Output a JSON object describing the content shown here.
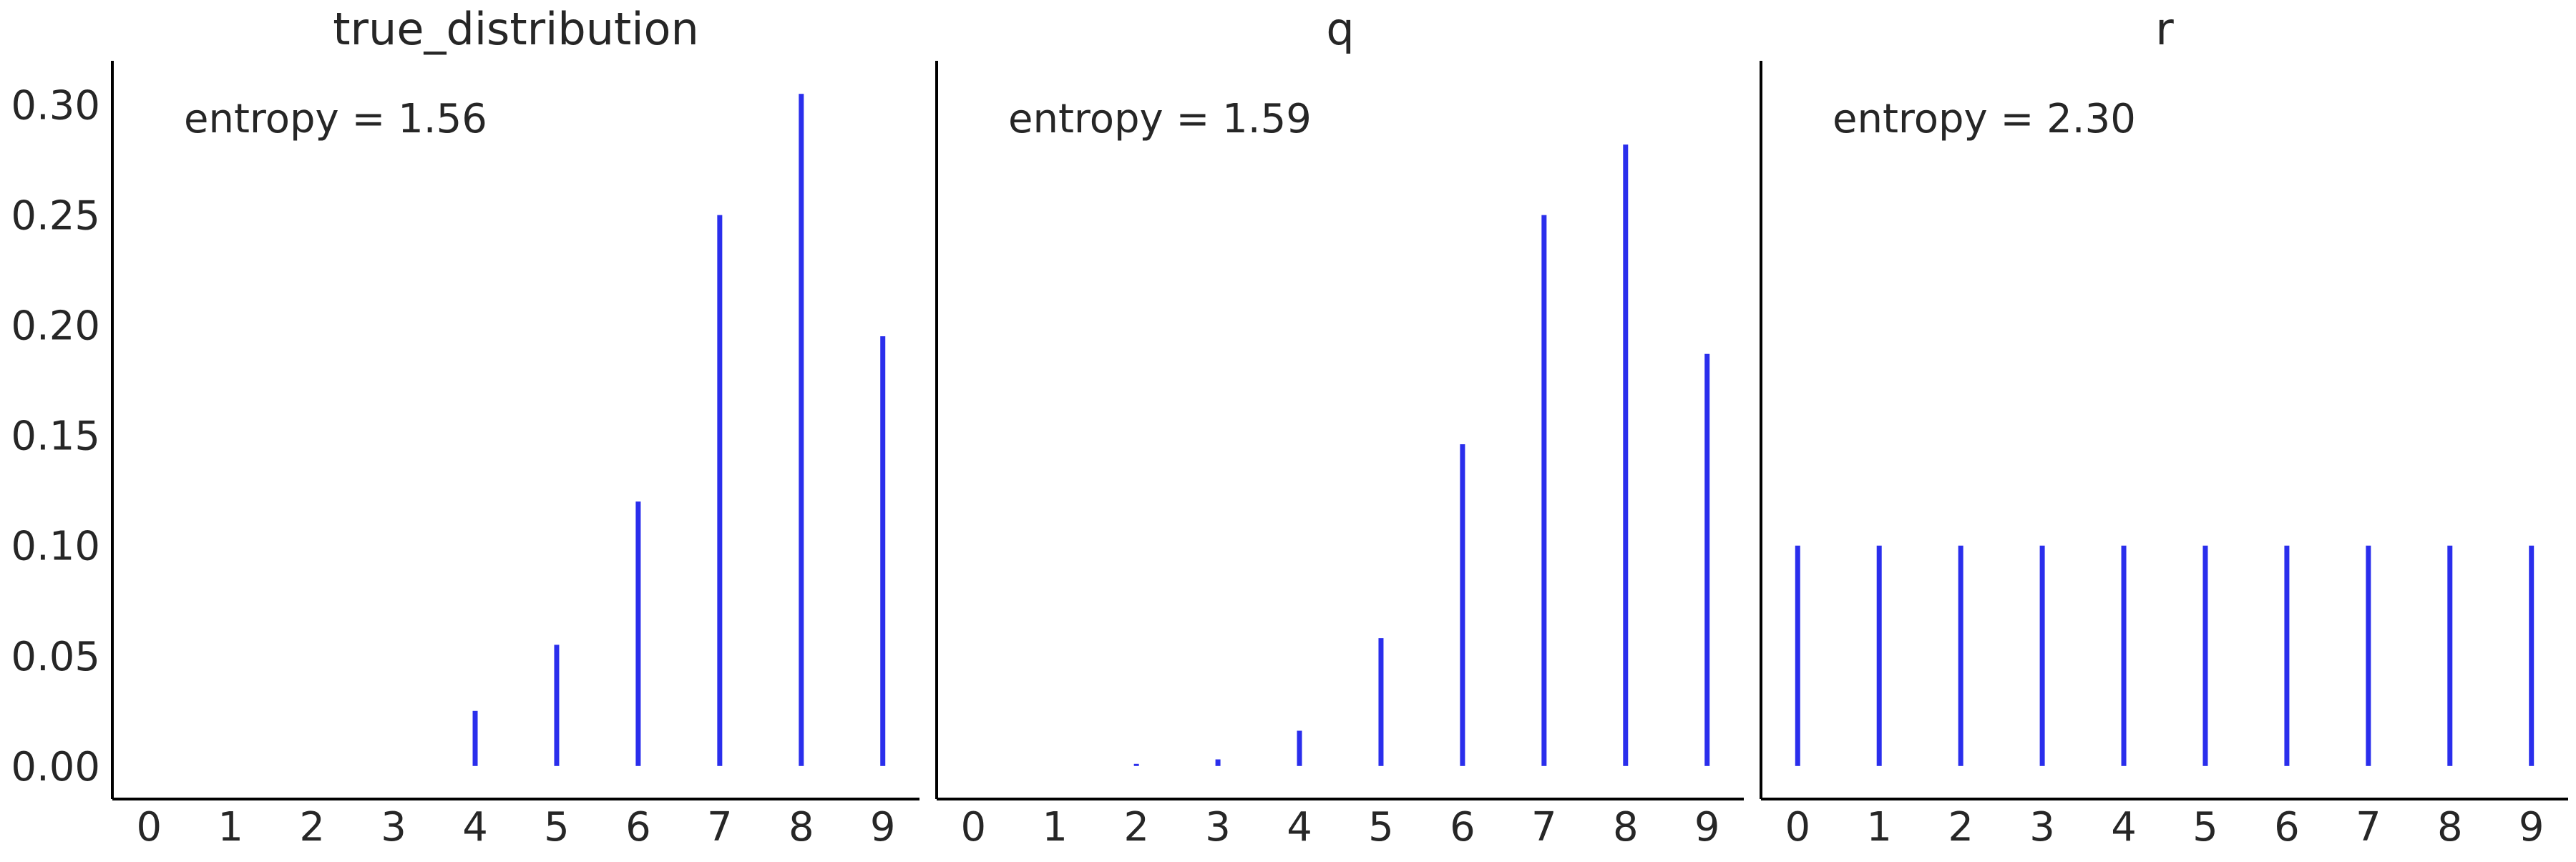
{
  "chart_data": [
    {
      "type": "bar",
      "title": "true_distribution",
      "annotation": "entropy = 1.56",
      "x": [
        0,
        1,
        2,
        3,
        4,
        5,
        6,
        7,
        8,
        9
      ],
      "values": [
        0.0,
        0.0,
        0.0,
        0.0,
        0.025,
        0.055,
        0.12,
        0.25,
        0.305,
        0.195
      ],
      "xlabel": "",
      "ylabel": "",
      "ylim": [
        -0.015,
        0.32
      ],
      "xlim": [
        -0.45,
        9.45
      ],
      "grid": false
    },
    {
      "type": "bar",
      "title": "q",
      "annotation": "entropy = 1.59",
      "x": [
        0,
        1,
        2,
        3,
        4,
        5,
        6,
        7,
        8,
        9
      ],
      "values": [
        0.0,
        0.0,
        0.0005,
        0.003,
        0.016,
        0.058,
        0.146,
        0.25,
        0.282,
        0.187
      ],
      "xlabel": "",
      "ylabel": "",
      "ylim": [
        -0.015,
        0.32
      ],
      "xlim": [
        -0.45,
        9.45
      ],
      "grid": false
    },
    {
      "type": "bar",
      "title": "r",
      "annotation": "entropy = 2.30",
      "x": [
        0,
        1,
        2,
        3,
        4,
        5,
        6,
        7,
        8,
        9
      ],
      "values": [
        0.1,
        0.1,
        0.1,
        0.1,
        0.1,
        0.1,
        0.1,
        0.1,
        0.1,
        0.1
      ],
      "xlabel": "",
      "ylabel": "",
      "ylim": [
        -0.015,
        0.32
      ],
      "xlim": [
        -0.45,
        9.45
      ],
      "grid": false
    }
  ],
  "shared_y_ticks": [
    "0.00",
    "0.05",
    "0.10",
    "0.15",
    "0.20",
    "0.25",
    "0.30"
  ],
  "colors": {
    "bar": "#2a2eec",
    "axis": "#000000",
    "text": "#262626"
  }
}
